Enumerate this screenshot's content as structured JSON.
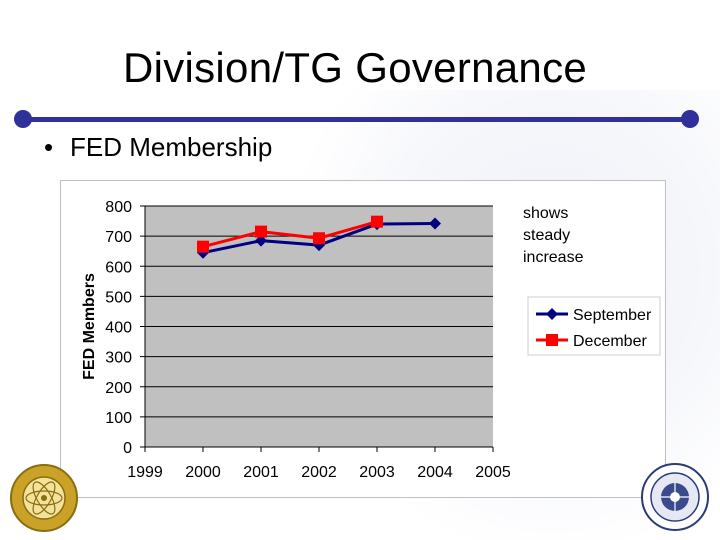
{
  "slide": {
    "title": "Division/TG Governance",
    "bullet": "FED Membership",
    "note_lines": [
      "shows",
      "steady",
      "increase"
    ]
  },
  "colors": {
    "rule": "#30309a",
    "september": "#000080",
    "december": "#ff0000",
    "plot_bg": "#c0c0c0"
  },
  "chart_data": {
    "type": "line",
    "title": "",
    "xlabel": "",
    "ylabel": "FED Members",
    "x": [
      2000,
      2001,
      2002,
      2003,
      2004
    ],
    "xticks": [
      "1999",
      "2000",
      "2001",
      "2002",
      "2003",
      "2004",
      "2005"
    ],
    "xlim": [
      1999,
      2005
    ],
    "yticks": [
      "0",
      "100",
      "200",
      "300",
      "400",
      "500",
      "600",
      "700",
      "800"
    ],
    "ylim": [
      0,
      800
    ],
    "series": [
      {
        "name": "September",
        "marker": "diamond",
        "values": [
          645,
          685,
          670,
          740,
          742
        ]
      },
      {
        "name": "December",
        "marker": "square",
        "values": [
          665,
          715,
          693,
          748,
          null
        ]
      }
    ],
    "legend_position": "right"
  }
}
